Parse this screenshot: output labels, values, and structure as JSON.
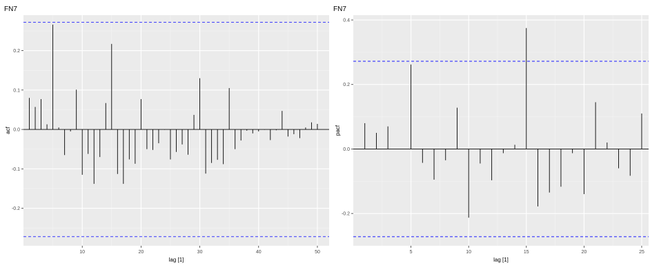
{
  "chart_data": [
    {
      "type": "bar",
      "title": "FN7",
      "xlabel": "lag [1]",
      "ylabel": "acf",
      "xlim": [
        0,
        52
      ],
      "ylim": [
        -0.295,
        0.29
      ],
      "x_ticks": [
        10,
        20,
        30,
        40,
        50
      ],
      "y_ticks": [
        -0.2,
        -0.1,
        0.0,
        0.1,
        0.2
      ],
      "y_tick_labels": [
        "-0.2",
        "-0.1",
        "0.0",
        "0.1",
        "0.2"
      ],
      "confidence_band": 0.272,
      "grid": true,
      "lags": [
        1,
        2,
        3,
        4,
        5,
        6,
        7,
        8,
        9,
        10,
        11,
        12,
        13,
        14,
        15,
        16,
        17,
        18,
        19,
        20,
        21,
        22,
        23,
        24,
        25,
        26,
        27,
        28,
        29,
        30,
        31,
        32,
        33,
        34,
        35,
        36,
        37,
        38,
        39,
        40,
        41,
        42,
        43,
        44,
        45,
        46,
        47,
        48,
        49,
        50
      ],
      "values": [
        0.08,
        0.057,
        0.077,
        0.013,
        0.266,
        0.005,
        -0.065,
        -0.005,
        0.101,
        -0.115,
        -0.062,
        -0.138,
        -0.07,
        0.067,
        0.217,
        -0.113,
        -0.138,
        -0.076,
        -0.087,
        0.077,
        -0.05,
        -0.052,
        -0.035,
        -0.001,
        -0.076,
        -0.057,
        -0.038,
        -0.064,
        0.037,
        0.13,
        -0.112,
        -0.085,
        -0.077,
        -0.088,
        0.105,
        -0.05,
        -0.028,
        -0.003,
        -0.01,
        -0.005,
        -0.001,
        -0.027,
        -0.002,
        0.047,
        -0.018,
        -0.012,
        -0.022,
        0.005,
        0.018,
        0.014
      ]
    },
    {
      "type": "bar",
      "title": "FN7",
      "xlabel": "lag [1]",
      "ylabel": "pacf",
      "xlim": [
        0,
        25.6
      ],
      "ylim": [
        -0.3,
        0.415
      ],
      "x_ticks": [
        5,
        10,
        15,
        20,
        25
      ],
      "y_ticks": [
        -0.2,
        0.0,
        0.2,
        0.4
      ],
      "y_tick_labels": [
        "-0.2",
        "0.0",
        "0.2",
        "0.4"
      ],
      "confidence_band": 0.272,
      "grid": true,
      "lags": [
        1,
        2,
        3,
        4,
        5,
        6,
        7,
        8,
        9,
        10,
        11,
        12,
        13,
        14,
        15,
        16,
        17,
        18,
        19,
        20,
        21,
        22,
        23,
        24,
        25
      ],
      "values": [
        0.08,
        0.05,
        0.07,
        0.0,
        0.262,
        -0.043,
        -0.095,
        -0.035,
        0.128,
        -0.213,
        -0.045,
        -0.097,
        -0.013,
        0.013,
        0.375,
        -0.178,
        -0.135,
        -0.117,
        -0.013,
        -0.14,
        0.145,
        0.02,
        -0.06,
        -0.083,
        0.11
      ]
    }
  ]
}
